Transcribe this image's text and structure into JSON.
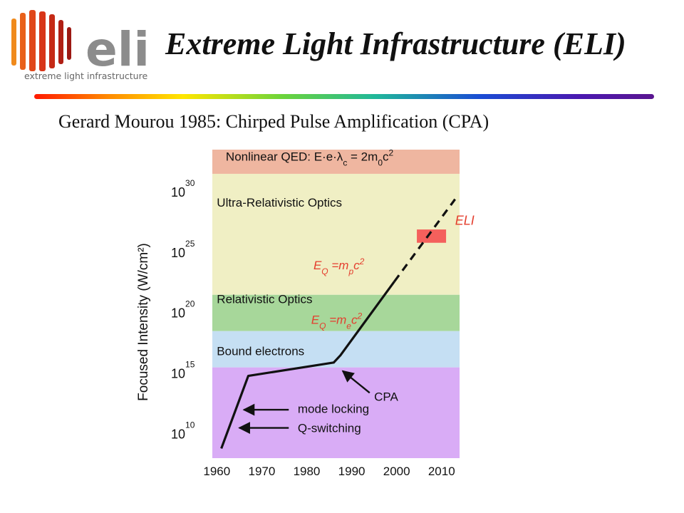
{
  "slide": {
    "title": "Extreme Light Infrastructure (ELI)",
    "subtitle": "Gerard Mourou 1985:  Chirped Pulse Amplification (CPA)",
    "logo_text": "eli",
    "logo_tagline": "extreme light infrastructure"
  },
  "chart_data": {
    "type": "line",
    "ylabel": "Focused Intensity (W/cm²)",
    "xlabel": "",
    "xlim": [
      1959,
      2014
    ],
    "ylim": [
      7.5,
      33
    ],
    "y_scale": "log10",
    "x_ticks": [
      1960,
      1970,
      1980,
      1990,
      2000,
      2010
    ],
    "y_ticks": [
      {
        "value": 10,
        "base": "10",
        "exp": "10"
      },
      {
        "value": 15,
        "base": "10",
        "exp": "15"
      },
      {
        "value": 20,
        "base": "10",
        "exp": "20"
      },
      {
        "value": 25,
        "base": "10",
        "exp": "25"
      },
      {
        "value": 30,
        "base": "10",
        "exp": "30"
      }
    ],
    "bands": [
      {
        "name": "Nonlinear QED",
        "from": 31,
        "to": 33,
        "color": "#efb6a0"
      },
      {
        "name": "Ultra-Relativistic Optics",
        "from": 21,
        "to": 31,
        "color": "#f0efc4"
      },
      {
        "name": "Relativistic Optics",
        "from": 18,
        "to": 21,
        "color": "#a7d79a"
      },
      {
        "name": "Bound electrons",
        "from": 15,
        "to": 18,
        "color": "#c5dff3"
      },
      {
        "name": "",
        "from": 7.5,
        "to": 15,
        "color": "#d9acf6"
      }
    ],
    "band_labels": [
      {
        "html": "Nonlinear QED: E·e·λ<tspan baseline-shift=\"sub\" font-size=\"12\">c</tspan> = 2m<tspan baseline-shift=\"sub\" font-size=\"12\">0</tspan>c<tspan baseline-shift=\"super\" font-size=\"12\">2</tspan>",
        "x": 1962,
        "y": 32.1
      },
      {
        "text": "Ultra-Relativistic Optics",
        "x": 1960,
        "y": 28.3
      },
      {
        "text": "Relativistic Optics",
        "x": 1960,
        "y": 20.3
      },
      {
        "text": "Bound electrons",
        "x": 1960,
        "y": 16.0
      }
    ],
    "series": [
      {
        "style": "solid",
        "x": [
          1961,
          1967,
          1986,
          1987.5,
          1999.5
        ],
        "y": [
          8.3,
          14.3,
          15.4,
          16.0,
          22.1
        ]
      },
      {
        "style": "dashed",
        "x": [
          1999.5,
          2013
        ],
        "y": [
          22.1,
          28.9
        ]
      }
    ],
    "eli_box": {
      "x": [
        2004.5,
        2011
      ],
      "y": [
        25.3,
        26.4
      ],
      "color": "#f4605c",
      "label": "ELI",
      "label_x": 2013,
      "label_y": 26.8
    },
    "threshold_labels": [
      {
        "E": "E",
        "sub1": "Q",
        "mid": " =m",
        "sub2": "p",
        "post": "c",
        "sup": "2",
        "x": 1981.5,
        "y": 23.1,
        "color": "#e43e2e"
      },
      {
        "E": "E",
        "sub1": "Q",
        "mid": " =m",
        "sub2": "e",
        "post": "c",
        "sup": "2",
        "x": 1981,
        "y": 18.6,
        "color": "#e43e2e"
      }
    ],
    "arrows": [
      {
        "label": "CPA",
        "tip_x": 1988,
        "tip_y": 14.7,
        "tail_x": 1994,
        "tail_y": 12.9,
        "label_x": 1995,
        "label_y": 12.6
      },
      {
        "label": "mode locking",
        "tip_x": 1966,
        "tip_y": 11.5,
        "tail_x": 1976,
        "tail_y": 11.5,
        "label_x": 1978,
        "label_y": 11.6
      },
      {
        "label": "Q-switching",
        "tip_x": 1965,
        "tip_y": 10.0,
        "tail_x": 1976,
        "tail_y": 10.0,
        "label_x": 1978,
        "label_y": 10.0
      }
    ]
  }
}
